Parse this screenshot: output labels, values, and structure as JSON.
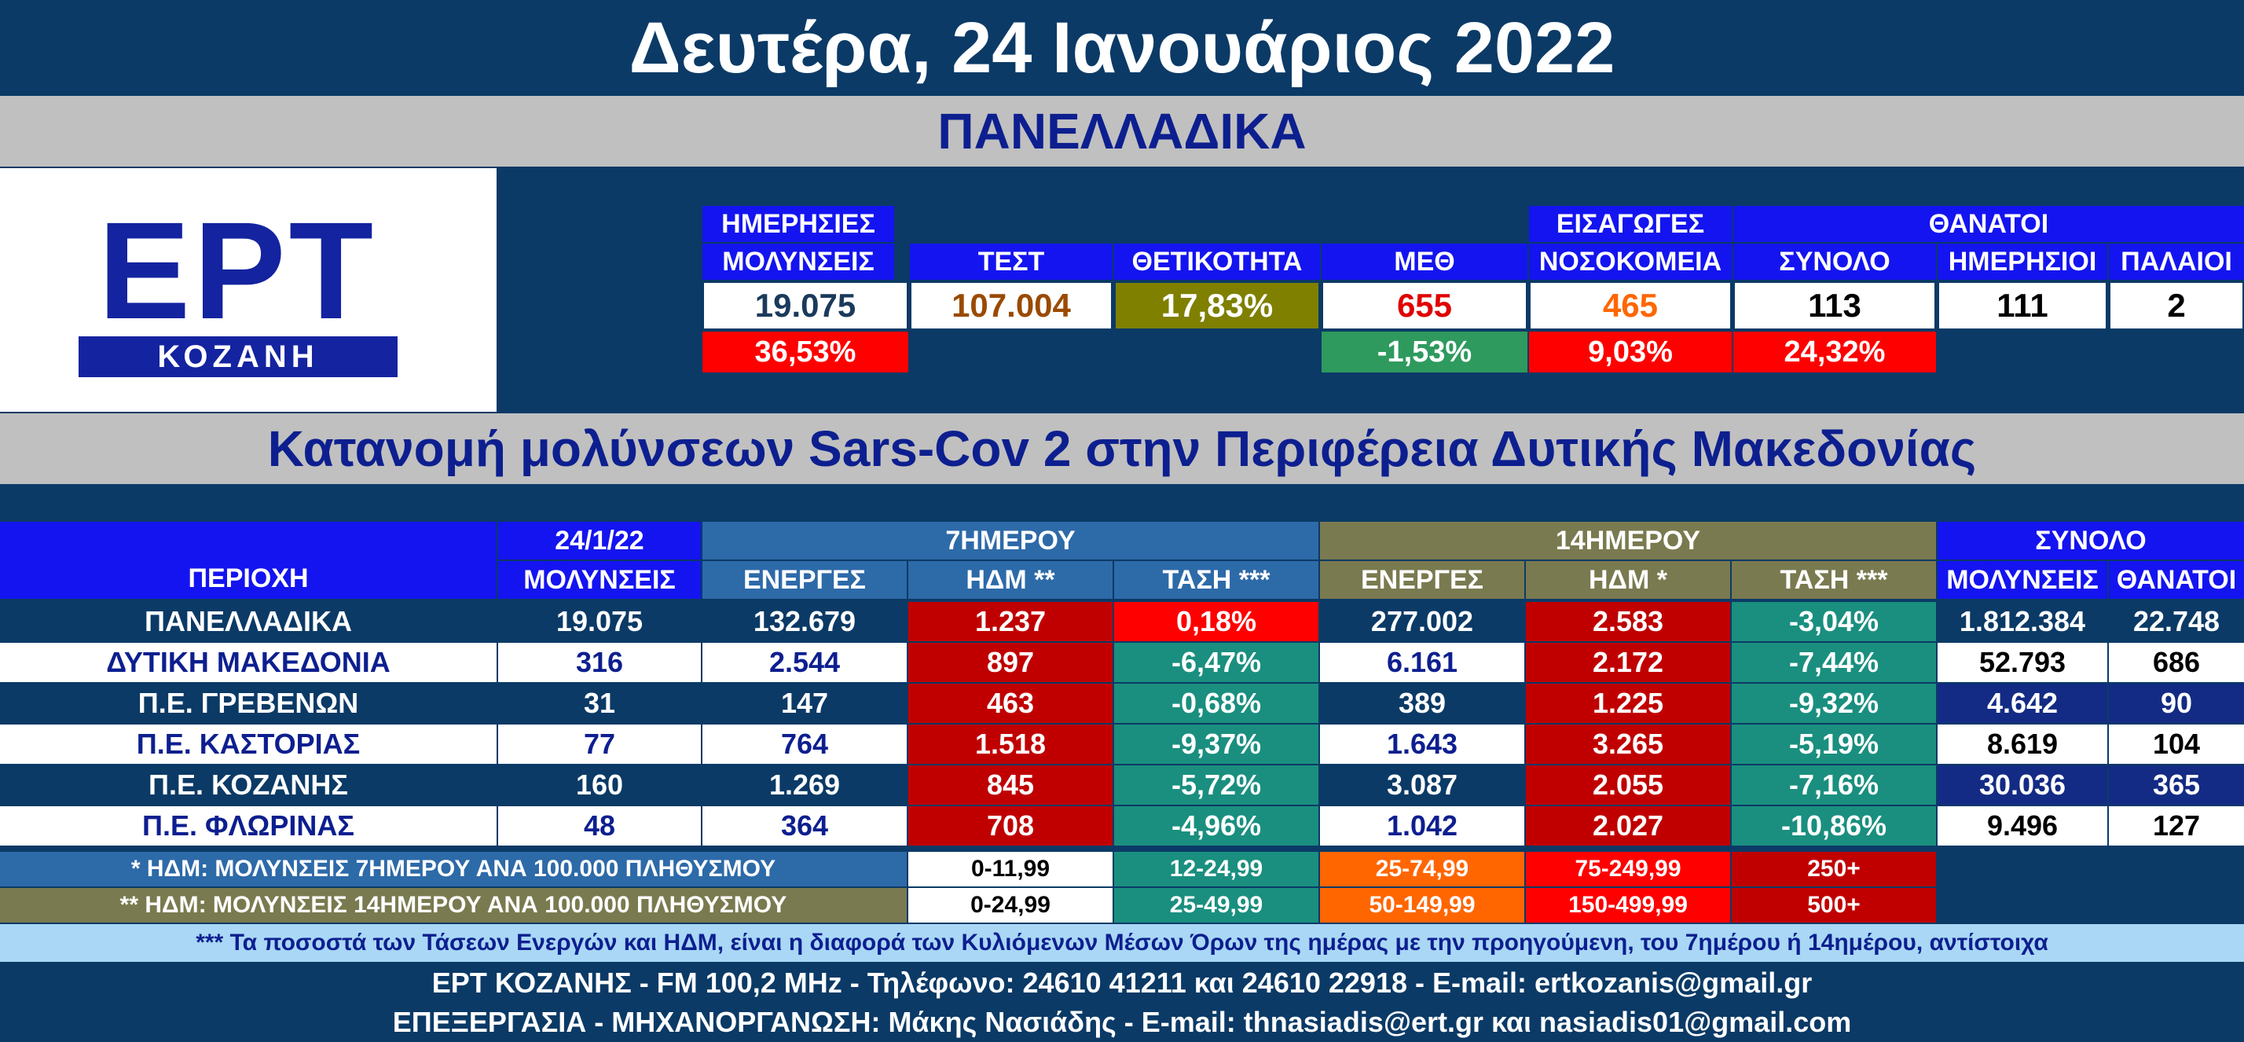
{
  "title": "Δευτέρα, 24 Ιανουάριος 2022",
  "national_banner": "ΠΑΝΕΛΛΑΔΙΚΑ",
  "logo": {
    "main": "ΕΡΤ",
    "sub": "ΚΟΖΑΝΗ"
  },
  "summary": {
    "daily_header_1": "ΗΜΕΡΗΣΙΕΣ",
    "daily_header_2": "ΜΟΛΥΝΣΕΙΣ",
    "daily_value": "19.075",
    "daily_change": "36,53%",
    "tests_header": "ΤΕΣΤ",
    "tests_value": "107.004",
    "positivity_header": "ΘΕΤΙΚΟΤΗΤΑ",
    "positivity_value": "17,83%",
    "icu_header": "ΜΕΘ",
    "icu_value": "655",
    "icu_change": "-1,53%",
    "admissions_header_1": "ΕΙΣΑΓΩΓΕΣ",
    "admissions_header_2": "ΝΟΣΟΚΟΜΕΙΑ",
    "admissions_value": "465",
    "admissions_change": "9,03%",
    "deaths_header": "ΘΑΝΑΤΟΙ",
    "deaths_total_header": "ΣΥΝΟΛΟ",
    "deaths_total_value": "113",
    "deaths_total_change": "24,32%",
    "deaths_daily_header": "ΗΜΕΡΗΣΙΟΙ",
    "deaths_daily_value": "111",
    "deaths_old_header": "ΠΑΛΑΙΟΙ",
    "deaths_old_value": "2"
  },
  "regional_banner": "Κατανομή μολύνσεων Sars-Cov 2 στην Περιφέρεια Δυτικής Μακεδονίας",
  "table": {
    "h_region": "ΠΕΡΙΟΧΗ",
    "h_date": "24/1/22",
    "h_infections": "ΜΟΛΥΝΣΕΙΣ",
    "h_7day": "7ΗΜΕΡΟΥ",
    "h_14day": "14ΗΜΕΡΟΥ",
    "h_total": "ΣΥΝΟΛΟ",
    "h_active": "ΕΝΕΡΓΕΣ",
    "h_hdm7": "ΗΔΜ **",
    "h_hdm14": "ΗΔΜ *",
    "h_trend": "ΤΑΣΗ ***",
    "h_total_inf": "ΜΟΛΥΝΣΕΙΣ",
    "h_total_deaths": "ΘΑΝΑΤΟΙ",
    "rows": [
      {
        "region": "ΠΑΝΕΛΛΑΔΙΚΑ",
        "inf": "19.075",
        "a7": "132.679",
        "h7": "1.237",
        "t7": "0,18%",
        "a14": "277.002",
        "h14": "2.583",
        "t14": "-3,04%",
        "tot": "1.812.384",
        "deaths": "22.748"
      },
      {
        "region": "ΔΥΤΙΚΗ ΜΑΚΕΔΟΝΙΑ",
        "inf": "316",
        "a7": "2.544",
        "h7": "897",
        "t7": "-6,47%",
        "a14": "6.161",
        "h14": "2.172",
        "t14": "-7,44%",
        "tot": "52.793",
        "deaths": "686"
      },
      {
        "region": "Π.Ε. ΓΡΕΒΕΝΩΝ",
        "inf": "31",
        "a7": "147",
        "h7": "463",
        "t7": "-0,68%",
        "a14": "389",
        "h14": "1.225",
        "t14": "-9,32%",
        "tot": "4.642",
        "deaths": "90"
      },
      {
        "region": "Π.Ε. ΚΑΣΤΟΡΙΑΣ",
        "inf": "77",
        "a7": "764",
        "h7": "1.518",
        "t7": "-9,37%",
        "a14": "1.643",
        "h14": "3.265",
        "t14": "-5,19%",
        "tot": "8.619",
        "deaths": "104"
      },
      {
        "region": "Π.Ε. ΚΟΖΑΝΗΣ",
        "inf": "160",
        "a7": "1.269",
        "h7": "845",
        "t7": "-5,72%",
        "a14": "3.087",
        "h14": "2.055",
        "t14": "-7,16%",
        "tot": "30.036",
        "deaths": "365"
      },
      {
        "region": "Π.Ε. ΦΛΩΡΙΝΑΣ",
        "inf": "48",
        "a7": "364",
        "h7": "708",
        "t7": "-4,96%",
        "a14": "1.042",
        "h14": "2.027",
        "t14": "-10,86%",
        "tot": "9.496",
        "deaths": "127"
      }
    ]
  },
  "legend": {
    "row1_label": "* ΗΔΜ: ΜΟΛΥΝΣΕΙΣ 7ΗΜΕΡΟΥ ΑΝΑ 100.000 ΠΛΗΘΥΣΜΟΥ",
    "row1": [
      "0-11,99",
      "12-24,99",
      "25-74,99",
      "75-249,99",
      "250+"
    ],
    "row2_label": "** ΗΔΜ: ΜΟΛΥΝΣΕΙΣ 14ΗΜΕΡΟΥ ΑΝΑ 100.000 ΠΛΗΘΥΣΜΟΥ",
    "row2": [
      "0-24,99",
      "25-49,99",
      "50-149,99",
      "150-499,99",
      "500+"
    ]
  },
  "note": "*** Τα ποσοστά των Τάσεων Ενεργών και ΗΔΜ, είναι η διαφορά των Κυλιόμενων Μέσων Όρων της ημέρας με την προηγούμενη, του 7ημέρου ή 14ημέρου, αντίστοιχα",
  "footer_1": "ΕΡΤ ΚΟΖΑΝΗΣ - FM 100,2 MHz - Τηλέφωνο:  24610 41211 και 24610 22918 - E-mail: ertkozanis@gmail.gr",
  "footer_2": "ΕΠΕΞΕΡΓΑΣΙΑ  -  ΜΗΧΑΝΟΡΓΑΝΩΣΗ: Μάκης Νασιάδης  -   E-mail: thnasiadis@ert.gr και nasiadis01@gmail.com",
  "colors": {
    "background": "#0b3a66",
    "banner_gray": "#c0c0c0",
    "header_blue": "#1414f0",
    "hdm_red": "#c00000",
    "bright_red": "#ff0000",
    "teal_green": "#1a8f7f",
    "olive": "#7f7f00",
    "seven_day_blue": "#2d6aa8",
    "fourteen_day_olive": "#7a7a50",
    "orange": "#ff6600",
    "light_blue_note": "#a9d7f5"
  }
}
